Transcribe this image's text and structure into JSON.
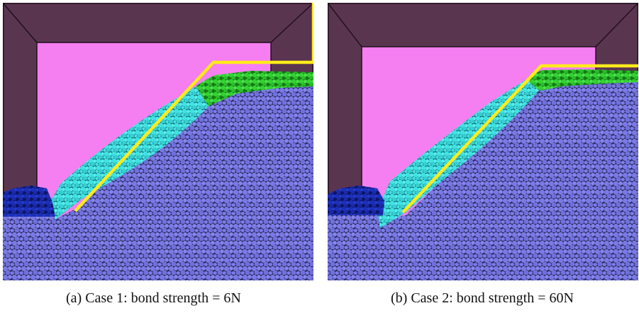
{
  "figure": {
    "panels": [
      {
        "id": "a",
        "caption": "(a) Case 1: bond strength = 6N"
      },
      {
        "id": "b",
        "caption": "(b) Case 2: bond strength = 60N"
      }
    ]
  },
  "colors": {
    "frame_wall": "#5a3550",
    "frame_edge": "#1e0e19",
    "background_fill": "#f57ef0",
    "bulk_particles": "#7a7ae6",
    "bulk_particles_dark": "#2a2a5c",
    "cyan_particles": "#3fe3e3",
    "green_particles": "#33d233",
    "blue_particles": "#1b2fb8",
    "boundary_line": "#ffeb1a"
  }
}
